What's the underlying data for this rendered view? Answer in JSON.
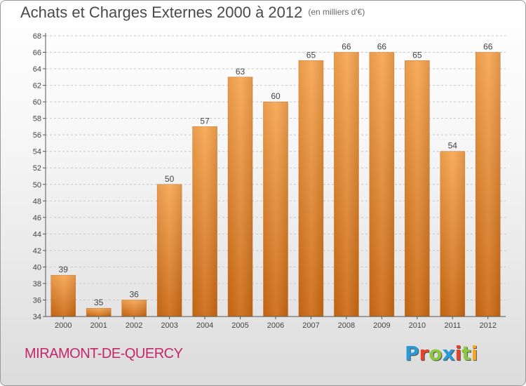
{
  "title": "Achats et Charges Externes 2000 à 2012",
  "subtitle": "(en milliers d'€)",
  "footer": {
    "city": "MIRAMONT-DE-QUERCY",
    "logo": "Proxiti"
  },
  "colors": {
    "bar": "#f0953e",
    "title": "#4a4a4a",
    "city": "#c4266a",
    "logo_letters": [
      "#2a9ad6",
      "#e8412b",
      "#8dc63f",
      "#2a9ad6",
      "#e8412b",
      "#8dc63f",
      "#f5a623"
    ]
  },
  "chart_data": {
    "type": "bar",
    "title": "Achats et Charges Externes 2000 à 2012",
    "subtitle": "(en milliers d'€)",
    "xlabel": "",
    "ylabel": "",
    "categories": [
      "2000",
      "2001",
      "2002",
      "2003",
      "2004",
      "2005",
      "2006",
      "2007",
      "2008",
      "2009",
      "2010",
      "2011",
      "2012"
    ],
    "values": [
      39,
      35,
      36,
      50,
      57,
      63,
      60,
      65,
      66,
      66,
      65,
      54,
      66
    ],
    "ylim": [
      34,
      68
    ],
    "yticks": [
      34,
      36,
      38,
      40,
      42,
      44,
      46,
      48,
      50,
      52,
      54,
      56,
      58,
      60,
      62,
      64,
      66,
      68
    ],
    "grid": "horizontal dashed",
    "legend": "none",
    "data_labels": true
  }
}
